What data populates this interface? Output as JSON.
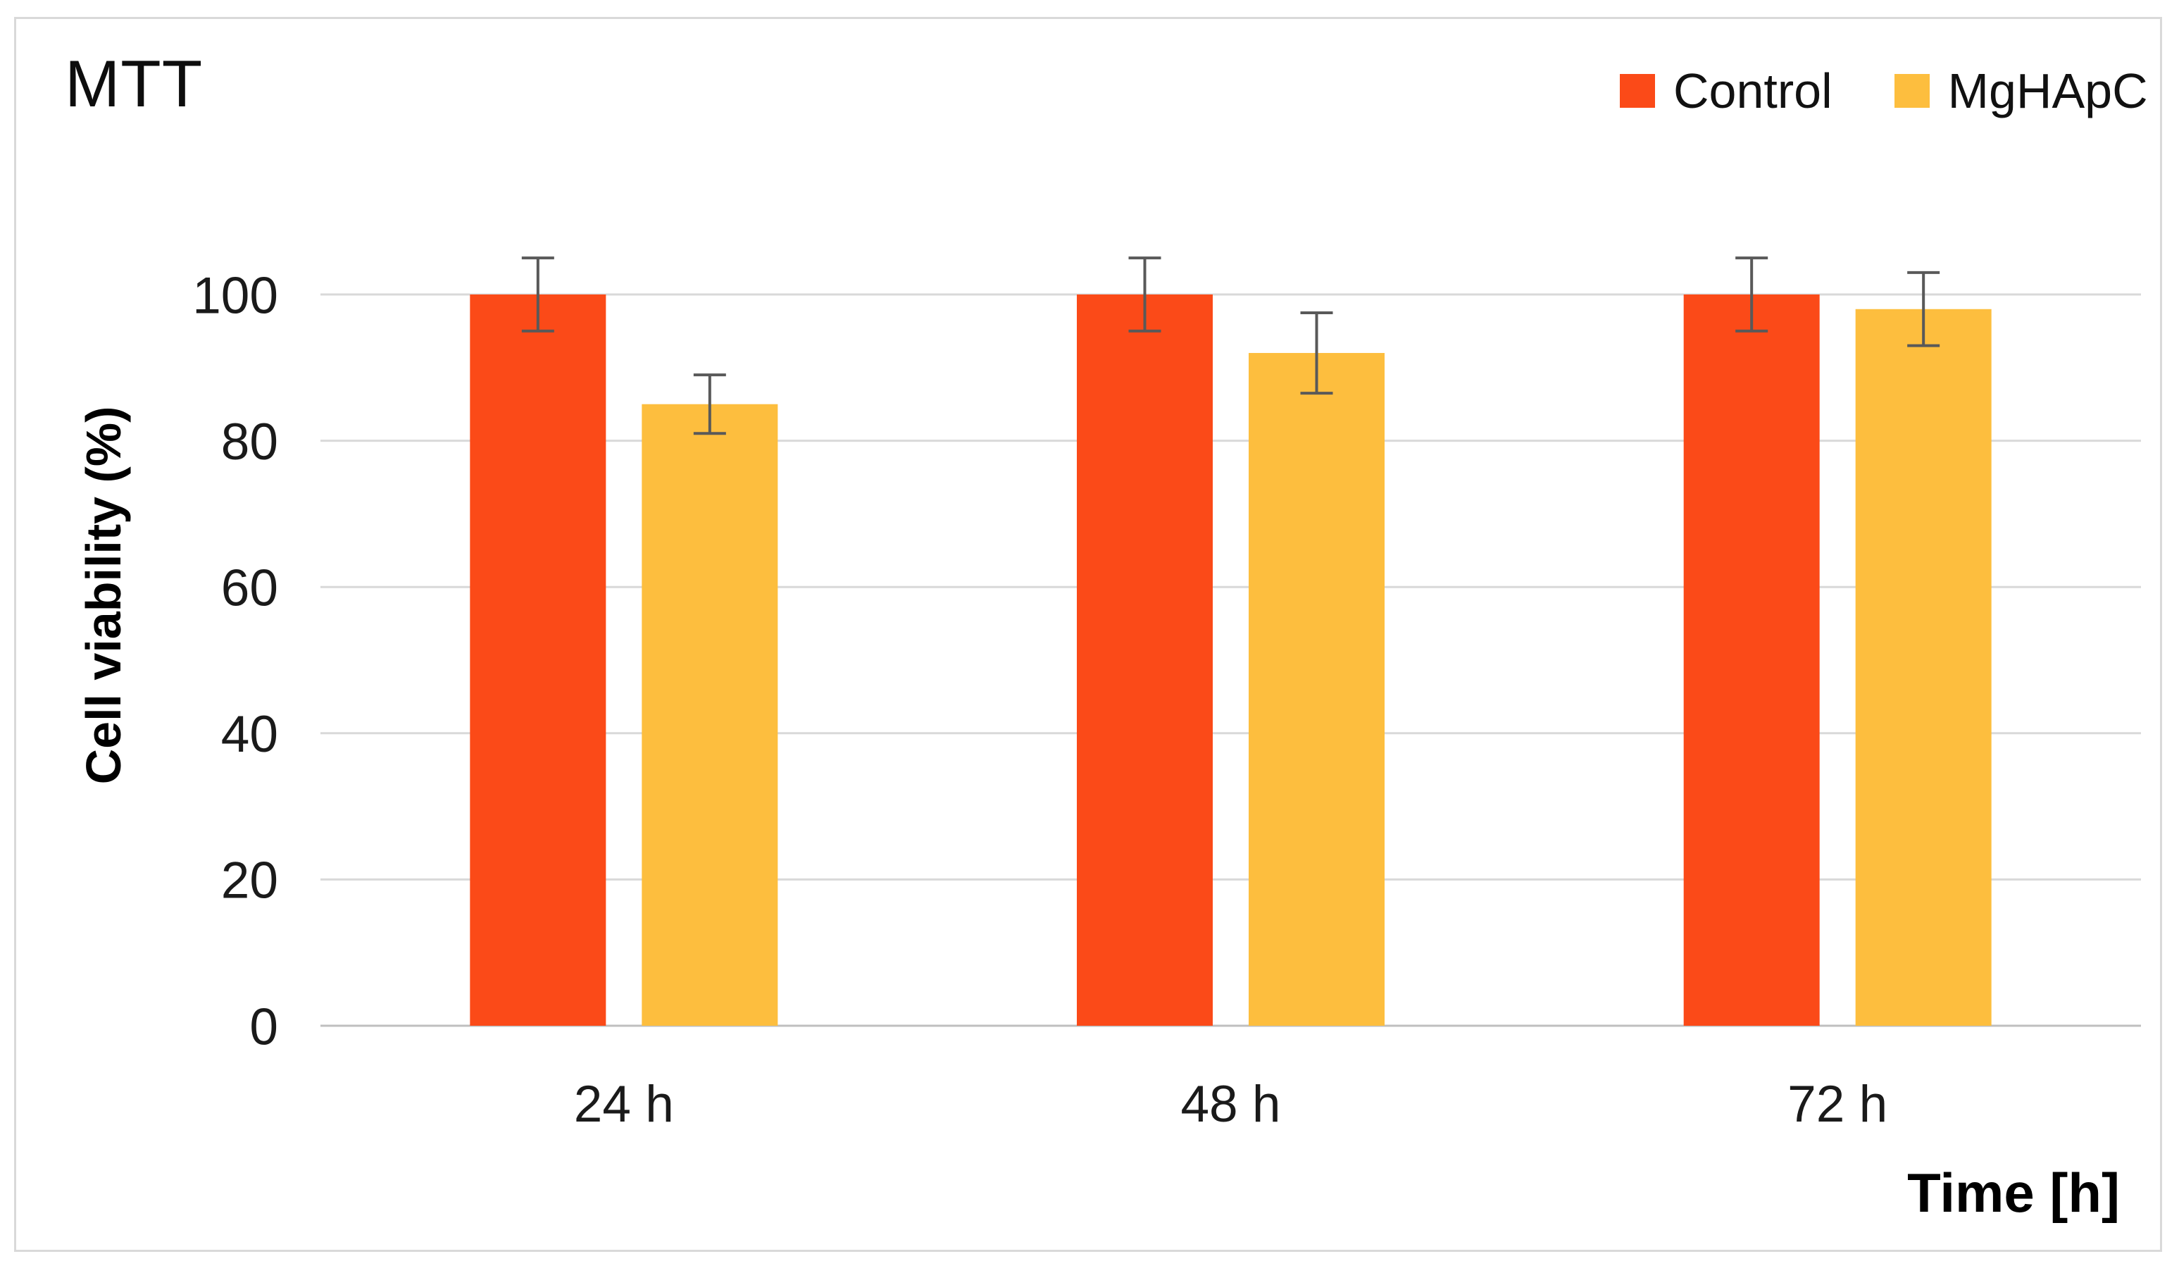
{
  "chart": {
    "title": "MTT",
    "ylabel": "Cell viability (%)",
    "xlabel": "Time [h]"
  },
  "chart_data": {
    "type": "bar",
    "title": "MTT",
    "categories": [
      "24 h",
      "48 h",
      "72 h"
    ],
    "series": [
      {
        "name": "Control",
        "color": "#FB4A18",
        "values": [
          100,
          100,
          100
        ],
        "errors": [
          5,
          5,
          5
        ]
      },
      {
        "name": "MgHApC",
        "color": "#FDBE3E",
        "values": [
          85,
          92,
          98
        ],
        "errors": [
          4,
          5.5,
          5
        ]
      }
    ],
    "xlabel": "Time [h]",
    "ylabel": "Cell viability (%)",
    "ylim": [
      0,
      110
    ],
    "yticks": [
      0,
      20,
      40,
      60,
      80,
      100
    ],
    "grid": true,
    "legend_position": "top-right",
    "colors": {
      "gridline": "#D9D9D9",
      "axis_line": "#BFBFBF",
      "error_bar": "#595959",
      "tick_text": "#1a1a1a",
      "frame_border": "#D9D9D9"
    }
  }
}
